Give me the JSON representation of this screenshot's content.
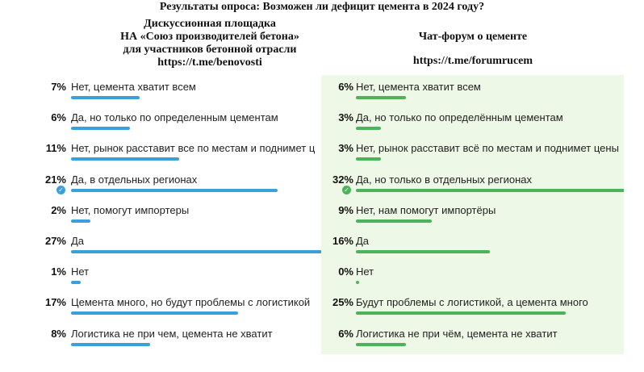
{
  "title": "Результаты опроса: Возможен ли дефицит цемента в 2024 году?",
  "left": {
    "header_lines": [
      "Дискуссионная площадка",
      "НА «Союз производителей бетона»",
      "для участников бетонной отрасли",
      "https://t.me/benovosti"
    ]
  },
  "right": {
    "header_title": "Чат-форум о цементе",
    "header_url": "https://t.me/forumrucem"
  },
  "colors": {
    "left_bar": "#3aa0dc",
    "right_bar": "#4db35a",
    "right_panel_bg": "#eef8e6"
  },
  "icons": {
    "selected_option": "check-circle-icon"
  },
  "chart_data": [
    {
      "type": "bar",
      "title": "",
      "source": "https://t.me/benovosti",
      "categories": [
        "Нет, цемента хватит всем",
        "Да, но только по определенным цементам",
        "Нет, рынок расставит все по местам и поднимет ц",
        "Да, в отдельных регионах",
        "Нет, помогут импортеры",
        "Да",
        "Нет",
        "Цемента много, но будут проблемы с логистикой",
        "Логистика не при чем, цемента не хватит"
      ],
      "values": [
        7,
        6,
        11,
        21,
        2,
        27,
        1,
        17,
        8
      ],
      "value_labels": [
        "7%",
        "6%",
        "11%",
        "21%",
        "2%",
        "27%",
        "1%",
        "17%",
        "8%"
      ],
      "selected_index": 3,
      "unit": "%"
    },
    {
      "type": "bar",
      "title": "",
      "source": "https://t.me/forumrucem",
      "categories": [
        "Нет, цемента хватит всем",
        "Да, но только по определённым цементам",
        "Нет, рынок расставит всё по местам и поднимет цены",
        "Да, но только в отдельных регионах",
        "Нет, нам помогут импортёры",
        "Да",
        "Нет",
        "Будут проблемы с логистикой, а цемента много",
        "Логистика не при чём, цемента не хватит"
      ],
      "values": [
        6,
        3,
        3,
        32,
        9,
        16,
        0,
        25,
        6
      ],
      "value_labels": [
        "6%",
        "3%",
        "3%",
        "32%",
        "9%",
        "16%",
        "0%",
        "25%",
        "6%"
      ],
      "selected_index": 3,
      "unit": "%"
    }
  ]
}
